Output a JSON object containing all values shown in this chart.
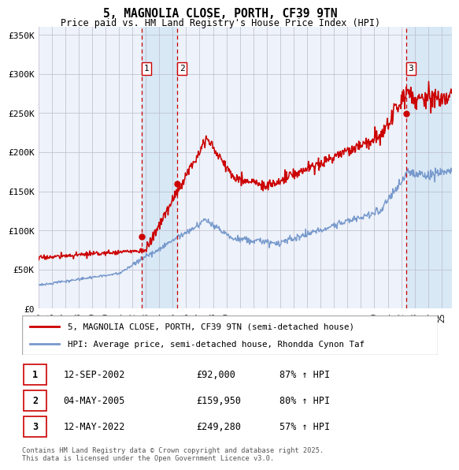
{
  "title": "5, MAGNOLIA CLOSE, PORTH, CF39 9TN",
  "subtitle": "Price paid vs. HM Land Registry's House Price Index (HPI)",
  "ytick_labels": [
    "£0",
    "£50K",
    "£100K",
    "£150K",
    "£200K",
    "£250K",
    "£300K",
    "£350K"
  ],
  "yticks": [
    0,
    50000,
    100000,
    150000,
    200000,
    250000,
    300000,
    350000
  ],
  "ylim": [
    0,
    360000
  ],
  "legend_line1": "5, MAGNOLIA CLOSE, PORTH, CF39 9TN (semi-detached house)",
  "legend_line2": "HPI: Average price, semi-detached house, Rhondda Cynon Taf",
  "transactions": [
    {
      "label": "1",
      "date": "12-SEP-2002",
      "price": 92000,
      "hpi_pct": "87% ↑ HPI",
      "x": 2002.71
    },
    {
      "label": "2",
      "date": "04-MAY-2005",
      "price": 159950,
      "hpi_pct": "80% ↑ HPI",
      "x": 2005.35
    },
    {
      "label": "3",
      "date": "12-MAY-2022",
      "price": 249280,
      "hpi_pct": "57% ↑ HPI",
      "x": 2022.37
    }
  ],
  "footnote": "Contains HM Land Registry data © Crown copyright and database right 2025.\nThis data is licensed under the Open Government Licence v3.0.",
  "plot_bg": "#eef2fa",
  "highlight_color": "#d8e8f5",
  "grid_color": "#bbbbcc",
  "red_color": "#cc0000",
  "blue_color": "#7799cc",
  "xmin": 1995,
  "xmax": 2025.75,
  "marker_y": 310000,
  "label_box_color": "#ffffff",
  "label_box_edge": "#cc0000"
}
